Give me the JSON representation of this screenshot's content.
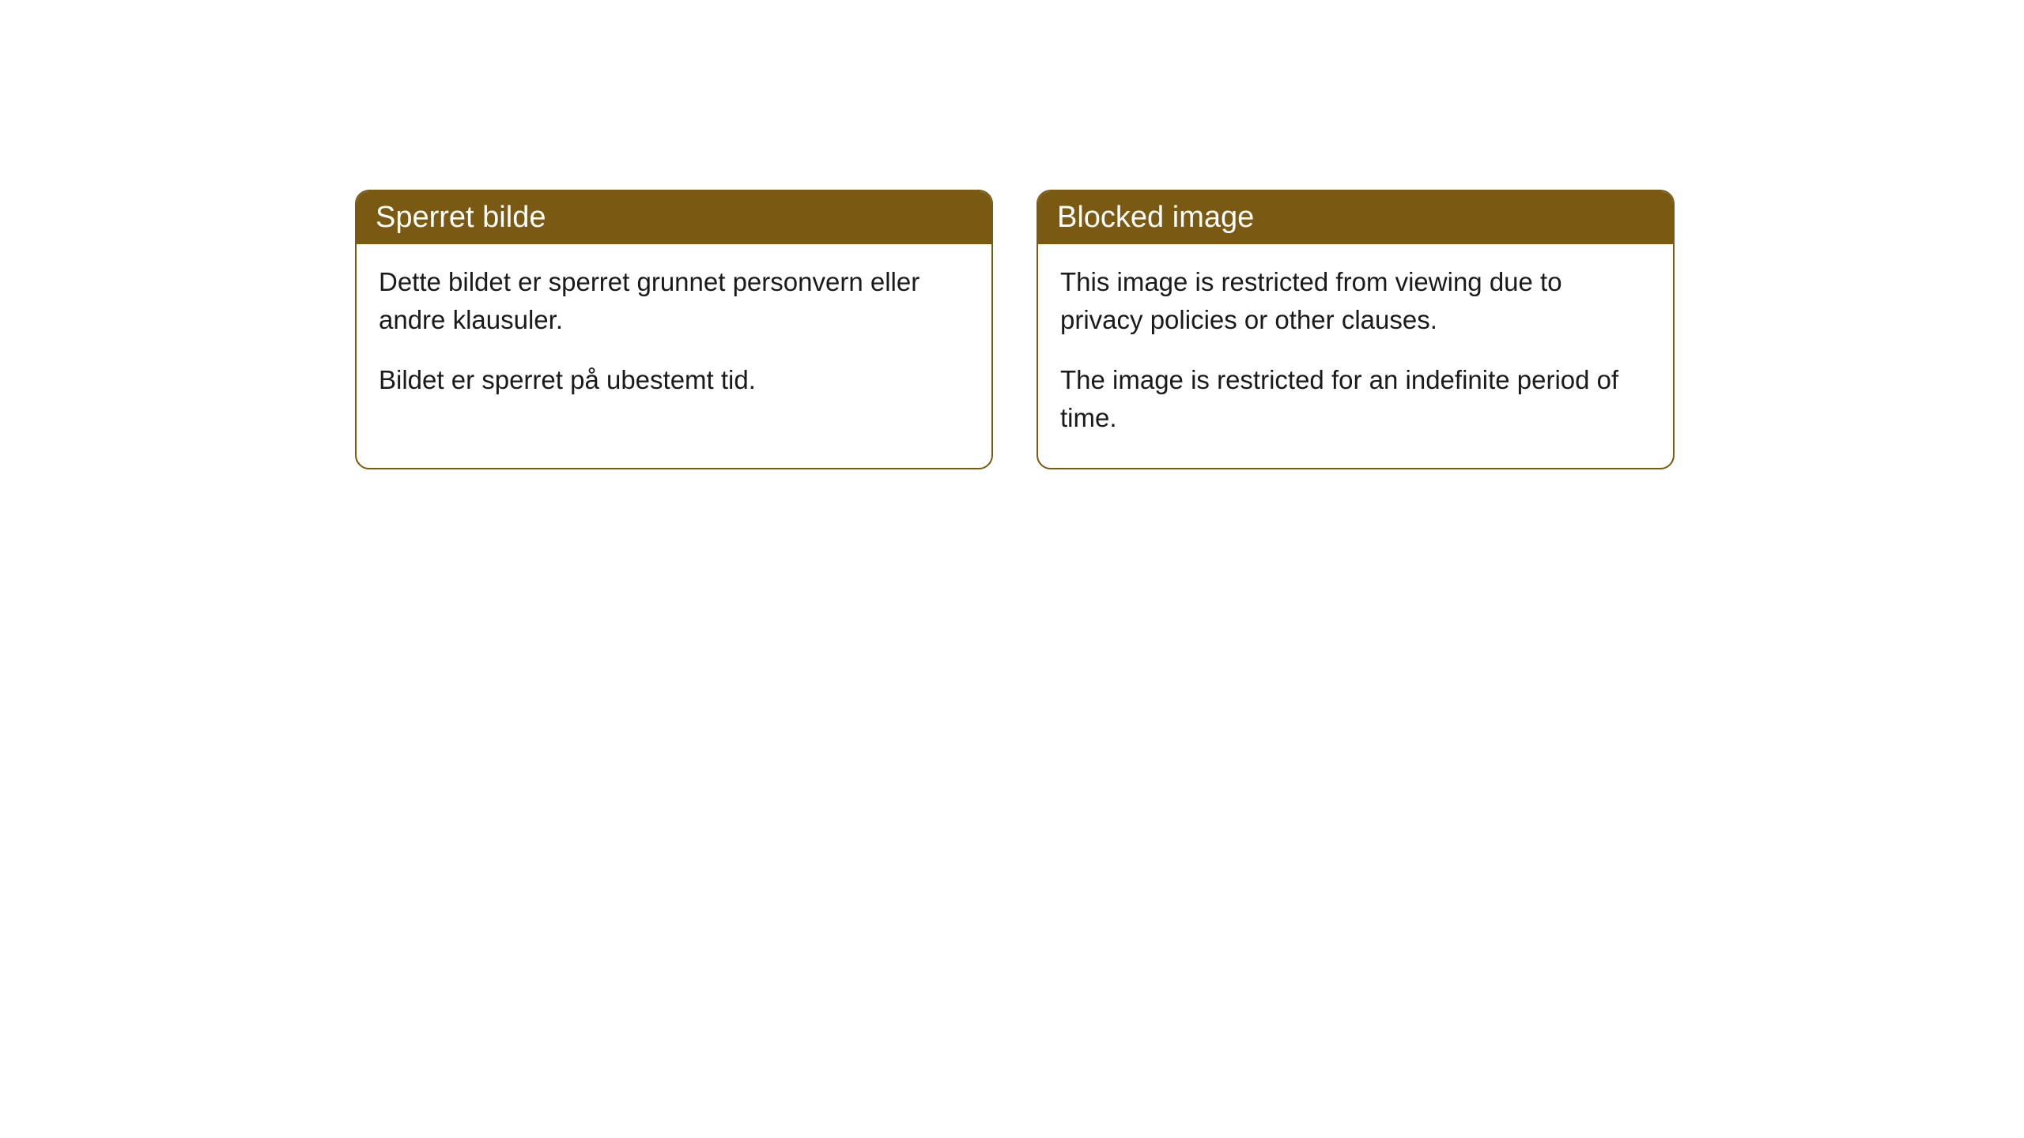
{
  "cards": [
    {
      "title": "Sperret bilde",
      "paragraph1": "Dette bildet er sperret grunnet personvern eller andre klausuler.",
      "paragraph2": "Bildet er sperret på ubestemt tid."
    },
    {
      "title": "Blocked image",
      "paragraph1": "This image is restricted from viewing due to privacy policies or other clauses.",
      "paragraph2": "The image is restricted for an indefinite period of time."
    }
  ],
  "styling": {
    "header_background_color": "#7a5a13",
    "header_text_color": "#ffffff",
    "card_border_color": "#7a5a13",
    "card_background_color": "#ffffff",
    "body_text_color": "#1a1a1a",
    "page_background_color": "#ffffff",
    "border_radius": 18,
    "title_fontsize": 38,
    "body_fontsize": 33
  }
}
